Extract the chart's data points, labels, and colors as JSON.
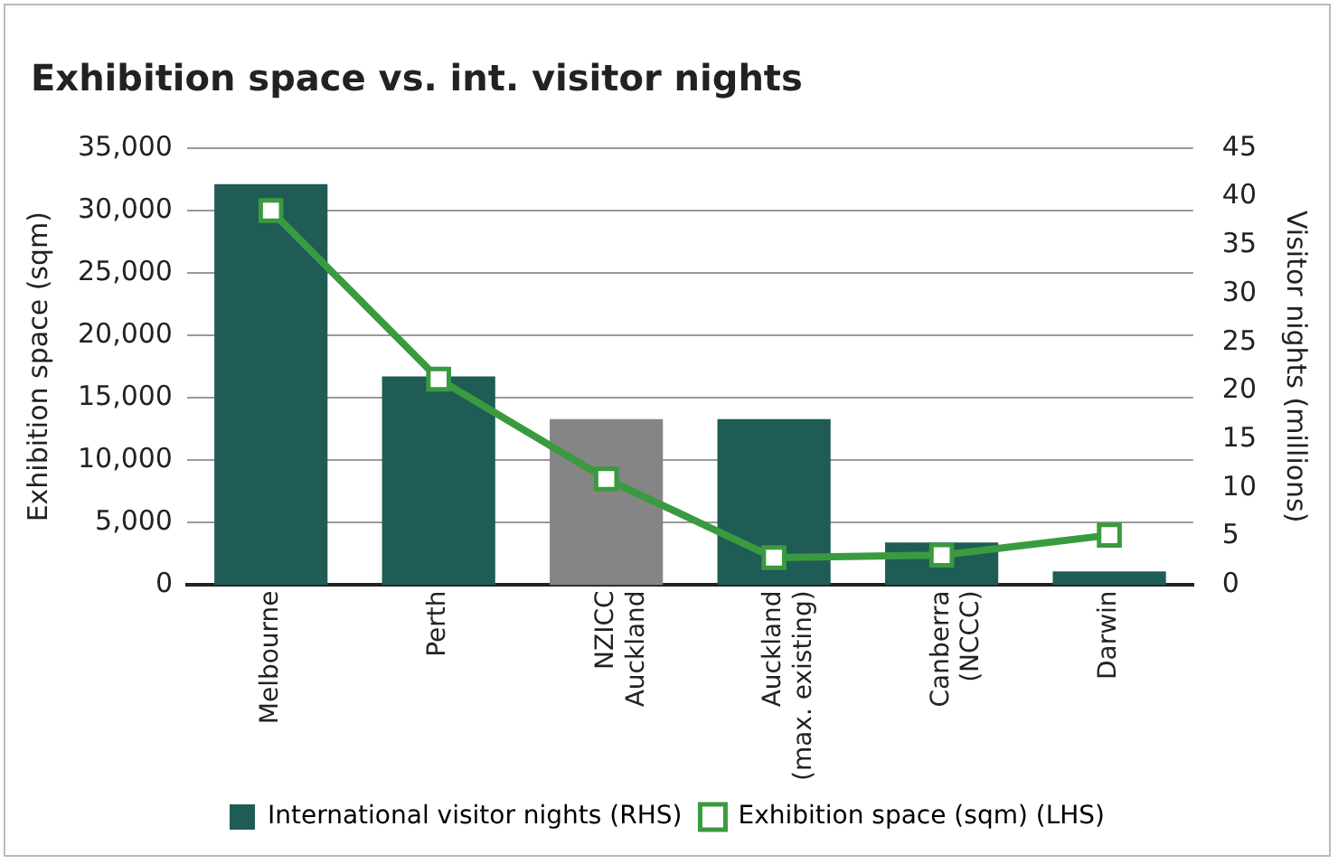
{
  "chart_data": {
    "type": "bar",
    "title": "Exhibition space vs. int. visitor nights",
    "ylabel": "Exhibition space (sqm)",
    "y2label": "Visitor nights (millions)",
    "categories": [
      "Melbourne",
      "Perth",
      "NZICC Auckland",
      "Auckland (max. existing)",
      "Canberra (NCCC)",
      "Darwin"
    ],
    "series": [
      {
        "name": "International visitor nights (RHS)",
        "axis": "y2",
        "color": "#1f5c55",
        "colors": [
          "#1f5c55",
          "#1f5c55",
          "#858585",
          "#1f5c55",
          "#1f5c55",
          "#1f5c55"
        ],
        "values": [
          41.3,
          21.5,
          17.1,
          17.1,
          4.4,
          1.4
        ]
      },
      {
        "name": "Exhibition space (sqm) (LHS)",
        "type": "line",
        "color": "#3a9a3f",
        "marker": "square",
        "values": [
          30000,
          16500,
          8500,
          2200,
          2400,
          4000
        ]
      }
    ],
    "ylim": [
      0,
      35000
    ],
    "yticks": [
      {
        "value": 0,
        "label": "0"
      },
      {
        "value": 5000,
        "label": "5,000"
      },
      {
        "value": 10000,
        "label": "10,000"
      },
      {
        "value": 15000,
        "label": "15,000"
      },
      {
        "value": 20000,
        "label": "20,000"
      },
      {
        "value": 25000,
        "label": "25,000"
      },
      {
        "value": 30000,
        "label": "30,000"
      },
      {
        "value": 35000,
        "label": "35,000"
      }
    ],
    "y2lim": [
      0,
      45
    ],
    "y2ticks": [
      0,
      5,
      10,
      15,
      20,
      25,
      30,
      35,
      40,
      45
    ],
    "grid": "y",
    "legend": "bottom"
  }
}
